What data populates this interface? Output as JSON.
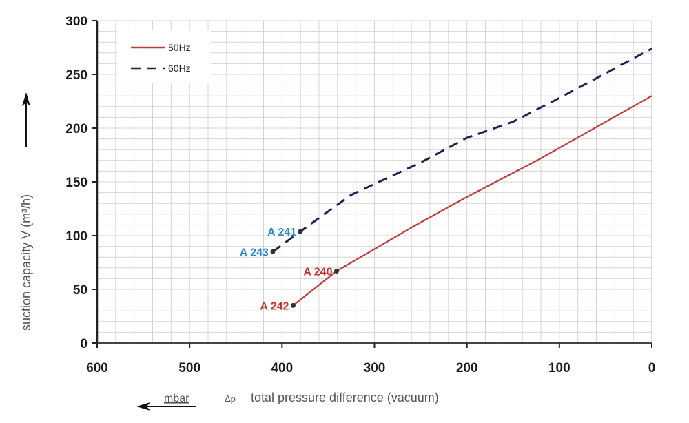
{
  "chart_data": {
    "type": "line",
    "title": "",
    "xlabel": "total pressure difference (vacuum)",
    "xlabel_symbol": "Δp",
    "xunit": "mbar",
    "ylabel": "suction capacity V (m³/h)",
    "xlim": [
      600,
      0
    ],
    "ylim": [
      0,
      300
    ],
    "x_reversed": true,
    "grid": true,
    "x_ticks": [
      600,
      500,
      400,
      300,
      200,
      100,
      0
    ],
    "x_tick_labels": [
      "600",
      "500",
      "400",
      "300",
      "200",
      "100",
      "0"
    ],
    "y_ticks": [
      0,
      50,
      100,
      150,
      200,
      250,
      300
    ],
    "y_tick_labels": [
      "0",
      "50",
      "100",
      "150",
      "200",
      "250",
      "300"
    ],
    "legend_position": "top-left",
    "series": [
      {
        "name": "50Hz",
        "style": "solid",
        "color": "#c0393b",
        "x": [
          388,
          341,
          259,
          200,
          124,
          0
        ],
        "y": [
          35,
          67,
          108,
          136,
          170,
          230
        ]
      },
      {
        "name": "60Hz",
        "style": "dashed",
        "color": "#1f2352",
        "x": [
          410,
          380,
          325,
          250,
          200,
          150,
          100,
          0
        ],
        "y": [
          85,
          104,
          138,
          168,
          191,
          206,
          228,
          274
        ]
      }
    ],
    "annotations": [
      {
        "text": "A 241",
        "x": 380,
        "y": 104,
        "color": "#2a8ac4"
      },
      {
        "text": "A 243",
        "x": 410,
        "y": 85,
        "color": "#2a8ac4"
      },
      {
        "text": "A 240",
        "x": 341,
        "y": 67,
        "color": "#c62d2d"
      },
      {
        "text": "A 242",
        "x": 388,
        "y": 35,
        "color": "#c62d2d"
      }
    ]
  }
}
